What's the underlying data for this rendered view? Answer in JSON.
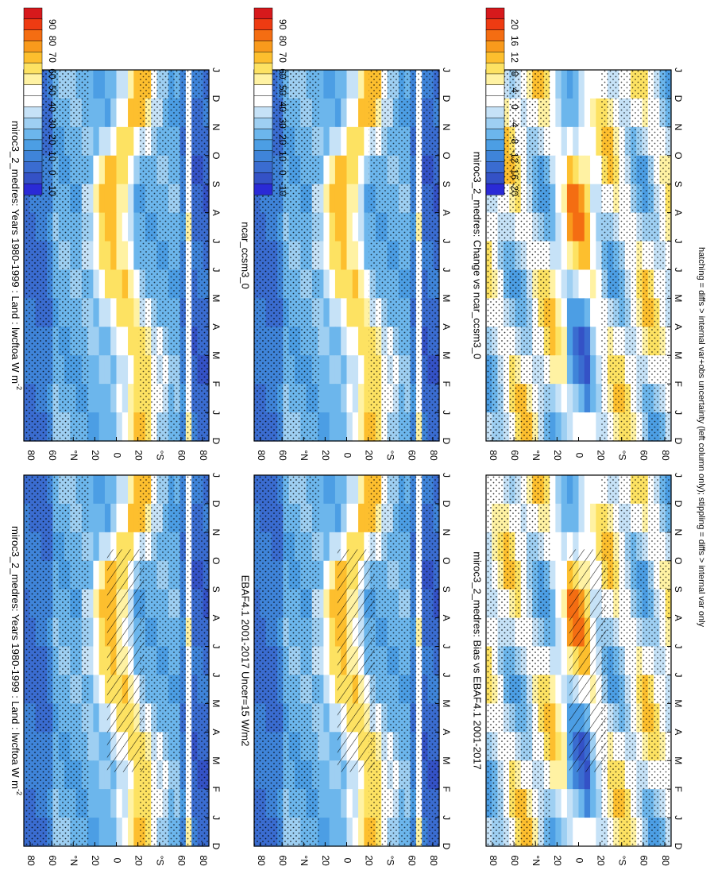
{
  "footnote": "hatching = diffs > internal var+obs uncertainty (left column only); stippling = diffs > internal var only",
  "months": [
    "D",
    "J",
    "F",
    "M",
    "A",
    "M",
    "J",
    "J",
    "A",
    "S",
    "O",
    "N",
    "D",
    "J"
  ],
  "lat_ticks": [
    "80",
    "60",
    "°N",
    "20",
    "0",
    "20",
    "°S",
    "60",
    "80"
  ],
  "scales": {
    "abs": {
      "colors": [
        "#d7191c",
        "#ee3b12",
        "#f46d12",
        "#f99a1c",
        "#fdbf2e",
        "#fde262",
        "#fff2a3",
        "#ffffff",
        "#ffffff",
        "#c6e2f7",
        "#9ecff2",
        "#6cb6ec",
        "#4c9ee4",
        "#3f84d9",
        "#3a6cd0",
        "#3452c6",
        "#2a2ad6"
      ],
      "labels": [
        "90",
        "80",
        "70",
        "60",
        "50",
        "40",
        "30",
        "20",
        "10",
        "0",
        "-10"
      ]
    },
    "diff": {
      "colors": [
        "#d7191c",
        "#ee3b12",
        "#f46d12",
        "#f99a1c",
        "#fdbf2e",
        "#fde262",
        "#fff2a3",
        "#ffffff",
        "#ffffff",
        "#c6e2f7",
        "#9ecff2",
        "#6cb6ec",
        "#4c9ee4",
        "#3f84d9",
        "#3a6cd0",
        "#3452c6",
        "#2a2ad6"
      ],
      "labels": [
        "20",
        "16",
        "12",
        "8",
        "4",
        "0",
        "-4",
        "-8",
        "-12",
        "-16",
        "-20"
      ]
    }
  },
  "chart_data": [
    {
      "id": "p1",
      "type": "heatmap",
      "title": "miroc3_2_medres: Years 1980-1999 : Land : lwcftoa W m^-2",
      "title_plain": "miroc3_2_medres: Years 1980-1999 : Land : lwcftoa W m",
      "title_sup": "-2",
      "x": "month (D..J)",
      "y": "latitude 80N..80S",
      "scale": "abs",
      "pattern": "hatch"
    },
    {
      "id": "p2",
      "type": "heatmap",
      "title": "miroc3_2_medres: Years 1980-1999 : Land : lwcftoa W m^-2",
      "title_plain": "miroc3_2_medres: Years 1980-1999 : Land : lwcftoa W m",
      "title_sup": "-2",
      "x": "month (D..J)",
      "y": "latitude 80N..80S",
      "scale": "abs",
      "pattern": "stipple"
    },
    {
      "id": "p3",
      "type": "heatmap",
      "title": "EBAF4.1 2001-2017 Uncer=15 W/m2",
      "x": "month (D..J)",
      "y": "latitude 80N..80S",
      "scale": "abs",
      "pattern": "hatch"
    },
    {
      "id": "p4",
      "type": "heatmap",
      "title": "ncar_ccsm3_0",
      "x": "month (D..J)",
      "y": "latitude 80N..80S",
      "scale": "abs",
      "pattern": "stipple"
    },
    {
      "id": "p5",
      "type": "heatmap",
      "title": "miroc3_2_medres: Bias vs EBAF4.1 2001-2017",
      "x": "month (D..J)",
      "y": "latitude 80N..80S",
      "scale": "diff",
      "pattern": "hatch"
    },
    {
      "id": "p6",
      "type": "heatmap",
      "title": "miroc3_2_medres: Change vs ncar_ccsm3_0",
      "x": "month (D..J)",
      "y": "latitude 80N..80S",
      "scale": "diff",
      "pattern": "stipple"
    }
  ]
}
